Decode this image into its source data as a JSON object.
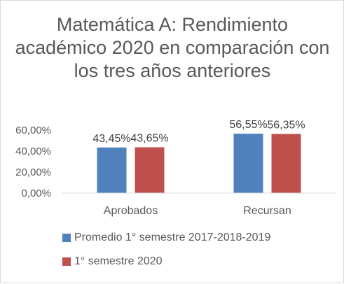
{
  "chart_data": {
    "type": "bar",
    "title": "Matemática A: Rendimiento académico 2020 en comparación con los tres años anteriores",
    "categories": [
      "Aprobados",
      "Recursan"
    ],
    "series": [
      {
        "name": "Promedio 1° semestre 2017-2018-2019",
        "values": [
          43.45,
          56.55
        ],
        "labels": [
          "43,45%",
          "56,55%"
        ],
        "color": "#4f81bd"
      },
      {
        "name": "1° semestre 2020",
        "values": [
          43.65,
          56.35
        ],
        "labels": [
          "43,65%",
          "56,35%"
        ],
        "color": "#c0504d"
      }
    ],
    "y_ticks": [
      {
        "value": 0,
        "label": "0,00%"
      },
      {
        "value": 20,
        "label": "20,00%"
      },
      {
        "value": 40,
        "label": "40,00%"
      },
      {
        "value": 60,
        "label": "60,00%"
      }
    ],
    "ylim": [
      0,
      60
    ],
    "legend_position": "bottom",
    "grid": false
  }
}
